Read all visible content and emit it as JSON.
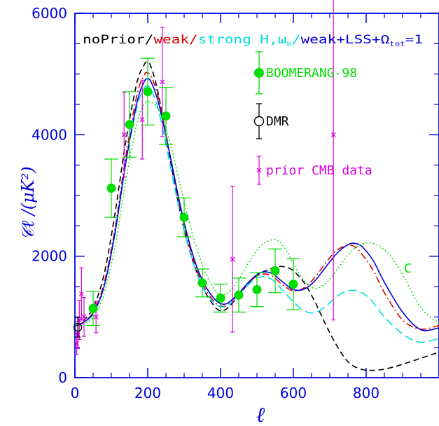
{
  "chart_data": {
    "type": "line",
    "xlabel": "ℓ",
    "ylabel": "𝒞ℓ /(μK²)",
    "xlim": [
      0,
      1000
    ],
    "ylim": [
      0,
      6000
    ],
    "x_ticks": [
      0,
      200,
      400,
      600,
      800
    ],
    "y_ticks": [
      0,
      2000,
      4000,
      6000
    ],
    "header": {
      "parts": [
        {
          "text": "noPrior",
          "color": "#000000"
        },
        {
          "text": "/",
          "color": "#000000"
        },
        {
          "text": "weak",
          "color": "#dd0000"
        },
        {
          "text": "/",
          "color": "#dd0000"
        },
        {
          "text": "strong H,ω",
          "color": "#00dddd"
        },
        {
          "text": "b",
          "color": "#00dddd",
          "sub": true
        },
        {
          "text": "/",
          "color": "#00dddd"
        },
        {
          "text": "weak+LSS+Ω",
          "color": "#0000dd"
        },
        {
          "text": "tot",
          "color": "#0000dd",
          "sub": true
        },
        {
          "text": "=1",
          "color": "#0000dd"
        }
      ]
    },
    "legend": [
      {
        "label": "BOOMERANG-98",
        "marker": "filled-circle",
        "color": "#00dd00"
      },
      {
        "label": "DMR",
        "marker": "open-circle",
        "color": "#000000"
      },
      {
        "label": "prior CMB data",
        "marker": "cross",
        "color": "#dd00dd"
      }
    ],
    "annotation": {
      "text": "C",
      "color": "#00dd00"
    },
    "series": [
      {
        "style": "dashed",
        "color": "#000000",
        "x": [
          2,
          20,
          50,
          80,
          110,
          140,
          170,
          190,
          200,
          210,
          230,
          260,
          290,
          320,
          350,
          380,
          400,
          420,
          450,
          480,
          510,
          540,
          560,
          580,
          600,
          630,
          660,
          690,
          720,
          750,
          780,
          810,
          850,
          900,
          950,
          1000
        ],
        "y": [
          850,
          920,
          1150,
          1700,
          2700,
          3900,
          4850,
          5150,
          5200,
          5100,
          4650,
          3650,
          2700,
          2000,
          1500,
          1200,
          1100,
          1150,
          1350,
          1580,
          1720,
          1800,
          1830,
          1820,
          1760,
          1560,
          1240,
          860,
          520,
          260,
          150,
          120,
          140,
          220,
          320,
          420
        ]
      },
      {
        "style": "dash-dot",
        "color": "#dd0000",
        "x": [
          2,
          20,
          50,
          80,
          110,
          140,
          170,
          190,
          200,
          210,
          230,
          260,
          290,
          320,
          350,
          380,
          400,
          420,
          450,
          480,
          510,
          540,
          570,
          600,
          630,
          660,
          690,
          720,
          750,
          770,
          790,
          820,
          850,
          900,
          950,
          1000
        ],
        "y": [
          850,
          900,
          1080,
          1550,
          2450,
          3650,
          4650,
          4980,
          5020,
          4950,
          4600,
          3700,
          2780,
          2050,
          1550,
          1270,
          1180,
          1200,
          1380,
          1580,
          1700,
          1680,
          1530,
          1430,
          1480,
          1660,
          1900,
          2100,
          2180,
          2150,
          2020,
          1760,
          1400,
          950,
          800,
          860
        ]
      },
      {
        "style": "long-dash",
        "color": "#00dddd",
        "x": [
          2,
          20,
          50,
          80,
          110,
          140,
          170,
          190,
          200,
          210,
          230,
          260,
          290,
          320,
          350,
          380,
          400,
          420,
          450,
          480,
          510,
          540,
          570,
          600,
          630,
          660,
          690,
          720,
          750,
          780,
          810,
          850,
          900,
          950,
          1000
        ],
        "y": [
          850,
          900,
          1050,
          1500,
          2400,
          3550,
          4450,
          4760,
          4800,
          4740,
          4400,
          3550,
          2680,
          1980,
          1500,
          1250,
          1170,
          1190,
          1360,
          1550,
          1660,
          1620,
          1440,
          1250,
          1100,
          1070,
          1180,
          1340,
          1430,
          1420,
          1300,
          1000,
          720,
          580,
          650
        ]
      },
      {
        "style": "solid",
        "color": "#0000dd",
        "x": [
          2,
          20,
          50,
          80,
          110,
          140,
          170,
          190,
          200,
          210,
          230,
          260,
          290,
          320,
          350,
          380,
          400,
          420,
          450,
          480,
          510,
          540,
          570,
          600,
          630,
          660,
          690,
          720,
          750,
          770,
          790,
          820,
          850,
          900,
          950,
          1000
        ],
        "y": [
          850,
          900,
          1060,
          1500,
          2380,
          3550,
          4520,
          4870,
          4920,
          4860,
          4520,
          3700,
          2820,
          2100,
          1600,
          1320,
          1220,
          1230,
          1390,
          1590,
          1730,
          1720,
          1580,
          1450,
          1460,
          1600,
          1830,
          2050,
          2190,
          2210,
          2150,
          1920,
          1570,
          1080,
          790,
          820
        ]
      },
      {
        "style": "dotted",
        "color": "#00dd00",
        "x": [
          2,
          20,
          50,
          80,
          110,
          140,
          170,
          190,
          210,
          230,
          260,
          290,
          320,
          350,
          380,
          400,
          420,
          450,
          480,
          510,
          540,
          560,
          580,
          600,
          630,
          660,
          690,
          720,
          750,
          780,
          810,
          840,
          870,
          900,
          950,
          1000
        ],
        "y": [
          850,
          880,
          1000,
          1380,
          2150,
          3250,
          4180,
          4500,
          4530,
          4400,
          3900,
          3150,
          2430,
          1850,
          1480,
          1370,
          1400,
          1620,
          1920,
          2170,
          2270,
          2250,
          2100,
          1880,
          1590,
          1470,
          1560,
          1780,
          2020,
          2180,
          2220,
          2150,
          1980,
          1700,
          1150,
          900
        ]
      }
    ],
    "boomerang": [
      {
        "x": 50,
        "y": 1140,
        "err": 280
      },
      {
        "x": 100,
        "y": 3120,
        "err": 480
      },
      {
        "x": 150,
        "y": 4170,
        "err": 540
      },
      {
        "x": 200,
        "y": 4710,
        "err": 550
      },
      {
        "x": 250,
        "y": 4310,
        "err": 470
      },
      {
        "x": 300,
        "y": 2640,
        "err": 320
      },
      {
        "x": 350,
        "y": 1560,
        "err": 230
      },
      {
        "x": 400,
        "y": 1310,
        "err": 230
      },
      {
        "x": 450,
        "y": 1360,
        "err": 280
      },
      {
        "x": 500,
        "y": 1450,
        "err": 280
      },
      {
        "x": 550,
        "y": 1760,
        "err": 360
      },
      {
        "x": 600,
        "y": 1540,
        "err": 420
      }
    ],
    "dmr": [
      {
        "x": 8,
        "y": 830,
        "err": 160
      }
    ],
    "prior_cmb": [
      {
        "x": 5,
        "y": 560,
        "err": 180
      },
      {
        "x": 8,
        "y": 700,
        "err": 220
      },
      {
        "x": 12,
        "y": 950,
        "err": 320
      },
      {
        "x": 18,
        "y": 1380,
        "err": 430
      },
      {
        "x": 25,
        "y": 1000,
        "err": 320
      },
      {
        "x": 58,
        "y": 1000,
        "err": 260
      },
      {
        "x": 135,
        "y": 4000,
        "err": 700
      },
      {
        "x": 185,
        "y": 4250,
        "err": 650
      },
      {
        "x": 240,
        "y": 4870,
        "err": 900
      },
      {
        "x": 433,
        "y": 1950,
        "err": 1200
      },
      {
        "x": 710,
        "y": 4000,
        "err": 3050
      }
    ]
  }
}
